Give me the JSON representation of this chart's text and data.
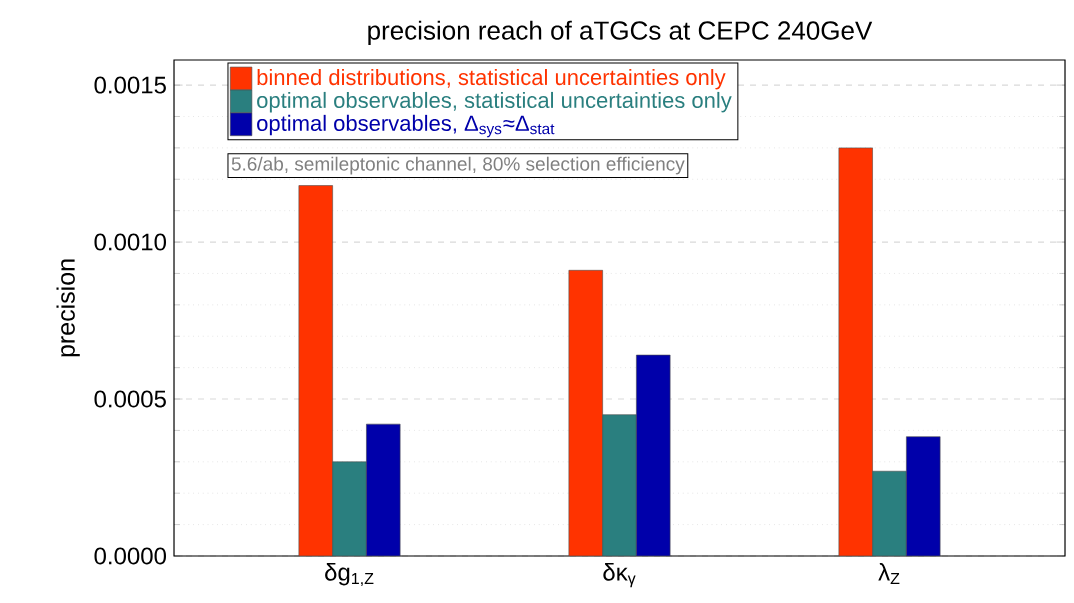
{
  "chart_data": {
    "type": "bar",
    "title": "precision reach of aTGCs at CEPC 240GeV",
    "ylabel": "precision",
    "categories": [
      "δg$_{1,Z}$",
      "δκ$_{γ}$",
      "λ$_{Z}$"
    ],
    "series": [
      {
        "name": "binned distributions, statistical uncertainties only",
        "color": "#ff3300",
        "values": [
          0.00118,
          0.00091,
          0.0013
        ]
      },
      {
        "name": "optimal observables, statistical uncertainties only",
        "color": "#2a7f7f",
        "values": [
          0.0003,
          0.00045,
          0.00027
        ]
      },
      {
        "name": "optimal observables, Δ$_{sys}$≈Δ$_{stat}$",
        "color": "#0000aa",
        "values": [
          0.00042,
          0.00064,
          0.00038
        ]
      }
    ],
    "ylim": [
      0,
      0.00158
    ],
    "yticks": [
      {
        "value": 0,
        "label": "0.0000"
      },
      {
        "value": 0.0005,
        "label": "0.0005"
      },
      {
        "value": 0.001,
        "label": "0.0010"
      },
      {
        "value": 0.0015,
        "label": "0.0015"
      }
    ],
    "grid": "y",
    "legend": "top left",
    "annotations": [
      "5.6/ab, semileptonic channel, 80% selection efficiency"
    ]
  }
}
